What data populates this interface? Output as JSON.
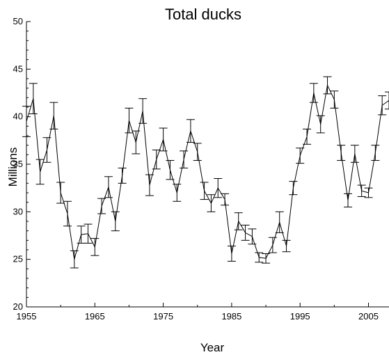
{
  "chart_data": {
    "type": "line",
    "title": "Total ducks",
    "xlabel": "Year",
    "ylabel": "Millions",
    "xlim": [
      1955,
      2008
    ],
    "ylim": [
      20,
      50
    ],
    "xticks": [
      "1955",
      "1965",
      "1975",
      "1985",
      "1995",
      "2005"
    ],
    "yticks": [
      "20",
      "25",
      "30",
      "35",
      "40",
      "45",
      "50"
    ],
    "grid": false,
    "legend": "none",
    "line_color": "#000000",
    "series": [
      {
        "x": [
          1955,
          1956,
          1957,
          1958,
          1959,
          1960,
          1961,
          1962,
          1963,
          1964,
          1965,
          1966,
          1967,
          1968,
          1969,
          1970,
          1971,
          1972,
          1973,
          1974,
          1975,
          1976,
          1977,
          1978,
          1979,
          1980,
          1981,
          1982,
          1983,
          1984,
          1985,
          1986,
          1987,
          1988,
          1989,
          1990,
          1991,
          1992,
          1993,
          1994,
          1995,
          1996,
          1997,
          1998,
          1999,
          2000,
          2001,
          2002,
          2003,
          2004,
          2005,
          2006,
          2007,
          2008
        ],
        "y": [
          39.5,
          41.9,
          34.2,
          36.5,
          40.1,
          32.0,
          29.8,
          25.0,
          27.6,
          27.7,
          26.3,
          30.6,
          32.6,
          29.0,
          33.8,
          39.6,
          37.3,
          40.6,
          32.8,
          35.5,
          37.6,
          34.4,
          32.0,
          35.5,
          38.5,
          36.3,
          32.2,
          30.9,
          32.5,
          31.3,
          25.6,
          29.0,
          27.8,
          27.4,
          25.2,
          25.1,
          26.5,
          28.9,
          26.4,
          32.5,
          35.9,
          37.9,
          42.5,
          39.2,
          43.3,
          41.8,
          36.2,
          31.2,
          36.1,
          32.2,
          32.0,
          36.2,
          41.2,
          41.7
        ],
        "err": [
          1.6,
          1.6,
          1.3,
          1.3,
          1.4,
          1.1,
          1.3,
          0.9,
          0.9,
          1.0,
          0.9,
          0.8,
          1.1,
          1.0,
          0.8,
          1.3,
          1.2,
          1.3,
          1.1,
          1.0,
          1.2,
          1.0,
          0.9,
          0.9,
          1.2,
          0.9,
          0.9,
          0.9,
          1.0,
          0.6,
          0.8,
          0.9,
          0.8,
          0.8,
          0.5,
          0.5,
          0.8,
          1.1,
          0.6,
          0.7,
          0.8,
          0.8,
          1.0,
          0.9,
          0.9,
          0.9,
          0.8,
          0.7,
          0.9,
          0.6,
          0.5,
          0.8,
          1.0,
          0.9
        ]
      }
    ]
  }
}
